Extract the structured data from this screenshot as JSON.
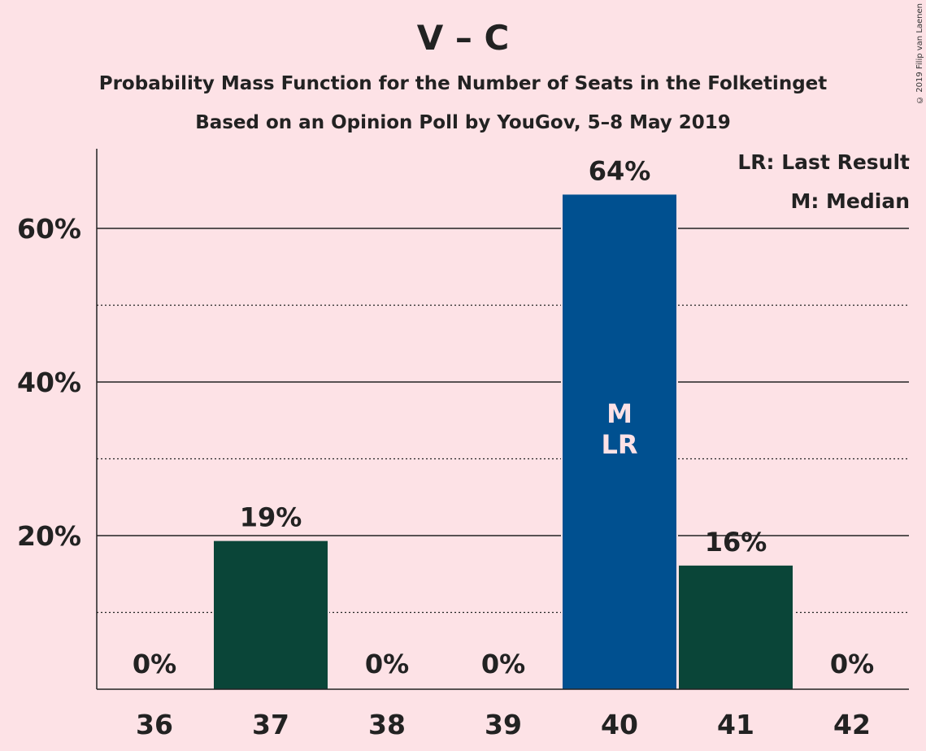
{
  "title": "V – C",
  "subtitle1": "Probability Mass Function for the Number of Seats in the Folketinget",
  "subtitle2": "Based on an Opinion Poll by YouGov, 5–8 May 2019",
  "copyright": "© 2019 Filip van Laenen",
  "legend": {
    "lr": "LR: Last Result",
    "m": "M: Median"
  },
  "colors": {
    "bar": "#0A4538",
    "median_bar": "#005090",
    "background": "#FDE2E6"
  },
  "chart_data": {
    "type": "bar",
    "categories": [
      "36",
      "37",
      "38",
      "39",
      "40",
      "41",
      "42"
    ],
    "values": [
      0,
      19.3,
      0,
      0,
      64.4,
      16.1,
      0
    ],
    "value_labels": [
      "0%",
      "19%",
      "0%",
      "0%",
      "64%",
      "16%",
      "0%"
    ],
    "bar_markers": [
      "",
      "",
      "",
      "",
      "M\nLR",
      "",
      ""
    ],
    "highlight_index": 4,
    "ylim": [
      0,
      70
    ],
    "yticks": [
      20,
      40,
      60
    ],
    "ytick_labels": [
      "20%",
      "40%",
      "60%"
    ],
    "minor_gridlines": [
      10,
      30,
      50
    ],
    "xlabel": "",
    "ylabel": ""
  }
}
